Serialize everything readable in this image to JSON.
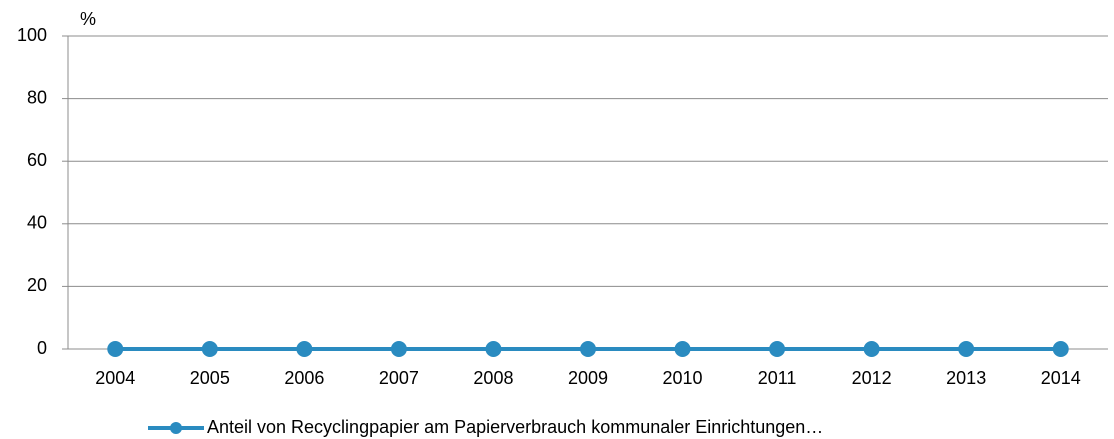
{
  "chart_data": {
    "type": "line",
    "y_label": "%",
    "categories": [
      "2004",
      "2005",
      "2006",
      "2007",
      "2008",
      "2009",
      "2010",
      "2011",
      "2012",
      "2013",
      "2014"
    ],
    "series": [
      {
        "name": "Anteil von Recyclingpapier am Papierverbrauch kommunaler Einrichtungen…",
        "color": "#2a8bc0",
        "values": [
          0,
          0,
          0,
          0,
          0,
          0,
          0,
          0,
          0,
          0,
          0
        ]
      }
    ],
    "ylim": [
      0,
      100
    ],
    "yticks": [
      0,
      20,
      40,
      60,
      80,
      100
    ],
    "grid": true,
    "legend": "bottom"
  }
}
